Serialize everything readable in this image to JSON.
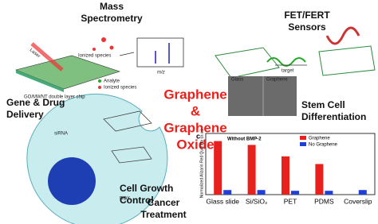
{
  "labels": {
    "mass_spec": [
      "Mass",
      "Spectrometry"
    ],
    "sensors": [
      "FET/FERT",
      "Sensors"
    ],
    "center": [
      "Graphene",
      "&",
      "Graphene",
      "Oxide"
    ],
    "stem": [
      "Stem Cell",
      "Differentiation"
    ],
    "delivery": [
      "Gene & Drug",
      "Delivery"
    ],
    "cancer": [
      "Cancer",
      "Treatment"
    ],
    "growth": [
      "Cell Growth",
      "Control"
    ]
  },
  "small_labels": {
    "laser": "Laser",
    "ionized": "Ionized species",
    "mz": "m/z",
    "analyte": "Analyte",
    "ionized_legend": "Ionized species",
    "chip": "GO/MWNT double layer chip",
    "target": "target",
    "glass": "Glass",
    "graphene": "Graphene",
    "sirna": "siRNA",
    "dox": "DOX"
  },
  "chart_data": {
    "type": "bar",
    "panel": "c",
    "title": "Without BMP-2",
    "y_label": "Normalized Alizarin Red Quantity (a.u.)",
    "categories": [
      "Glass slide",
      "Si/SiO₂",
      "PET",
      "PDMS",
      "Coverslip"
    ],
    "series": [
      {
        "name": "Graphene",
        "color": "#e8211c",
        "values": [
          7,
          6.5,
          5,
          4,
          null
        ]
      },
      {
        "name": "No Graphene",
        "color": "#1f3fd6",
        "values": [
          0.6,
          0.6,
          0.5,
          0.5,
          0.6
        ]
      }
    ],
    "ylim": [
      0,
      8
    ]
  }
}
